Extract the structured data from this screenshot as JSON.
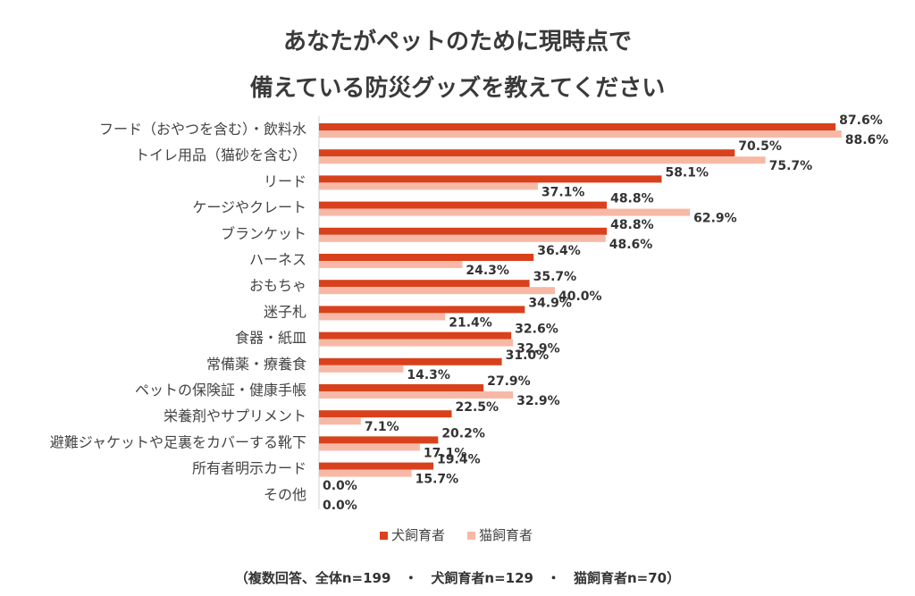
{
  "title_line1": "あなたがペットのために現時点で",
  "title_line2": "備えている防災グッズを教えてください",
  "footnote": "（複数回答、全体n=199　・　犬飼育者n=129　・　猫飼育者n=70）",
  "colors": {
    "dog": "#d8411c",
    "cat": "#f7b9a6",
    "axis": "#d0d0d0"
  },
  "chart_data": {
    "type": "bar",
    "orientation": "horizontal",
    "categories": [
      "フード（おやつを含む）・飲料水",
      "トイレ用品（猫砂を含む）",
      "リード",
      "ケージやクレート",
      "ブランケット",
      "ハーネス",
      "おもちゃ",
      "迷子札",
      "食器・紙皿",
      "常備薬・療養食",
      "ペットの保険証・健康手帳",
      "栄養剤やサプリメント",
      "避難ジャケットや足裏をカバーする靴下",
      "所有者明示カード",
      "その他"
    ],
    "series": [
      {
        "name": "犬飼育者",
        "color": "#d8411c",
        "values": [
          87.6,
          70.5,
          58.1,
          48.8,
          48.8,
          36.4,
          35.7,
          34.9,
          32.6,
          31.0,
          27.9,
          22.5,
          20.2,
          19.4,
          0.0
        ],
        "labels": [
          "87.6%",
          "70.5%",
          "58.1%",
          "48.8%",
          "48.8%",
          "36.4%",
          "35.7%",
          "34.9%",
          "32.6%",
          "31.0%",
          "27.9%",
          "22.5%",
          "20.2%",
          "19.4%",
          "0.0%"
        ]
      },
      {
        "name": "猫飼育者",
        "color": "#f7b9a6",
        "values": [
          88.6,
          75.7,
          37.1,
          62.9,
          48.6,
          24.3,
          40.0,
          21.4,
          32.9,
          14.3,
          32.9,
          7.1,
          17.1,
          15.7,
          0.0
        ],
        "labels": [
          "88.6%",
          "75.7%",
          "37.1%",
          "62.9%",
          "48.6%",
          "24.3%",
          "40.0%",
          "21.4%",
          "32.9%",
          "14.3%",
          "32.9%",
          "7.1%",
          "17.1%",
          "15.7%",
          "0.0%"
        ]
      }
    ],
    "xlim": [
      0,
      100
    ],
    "grid": false,
    "legend_position": "bottom"
  }
}
